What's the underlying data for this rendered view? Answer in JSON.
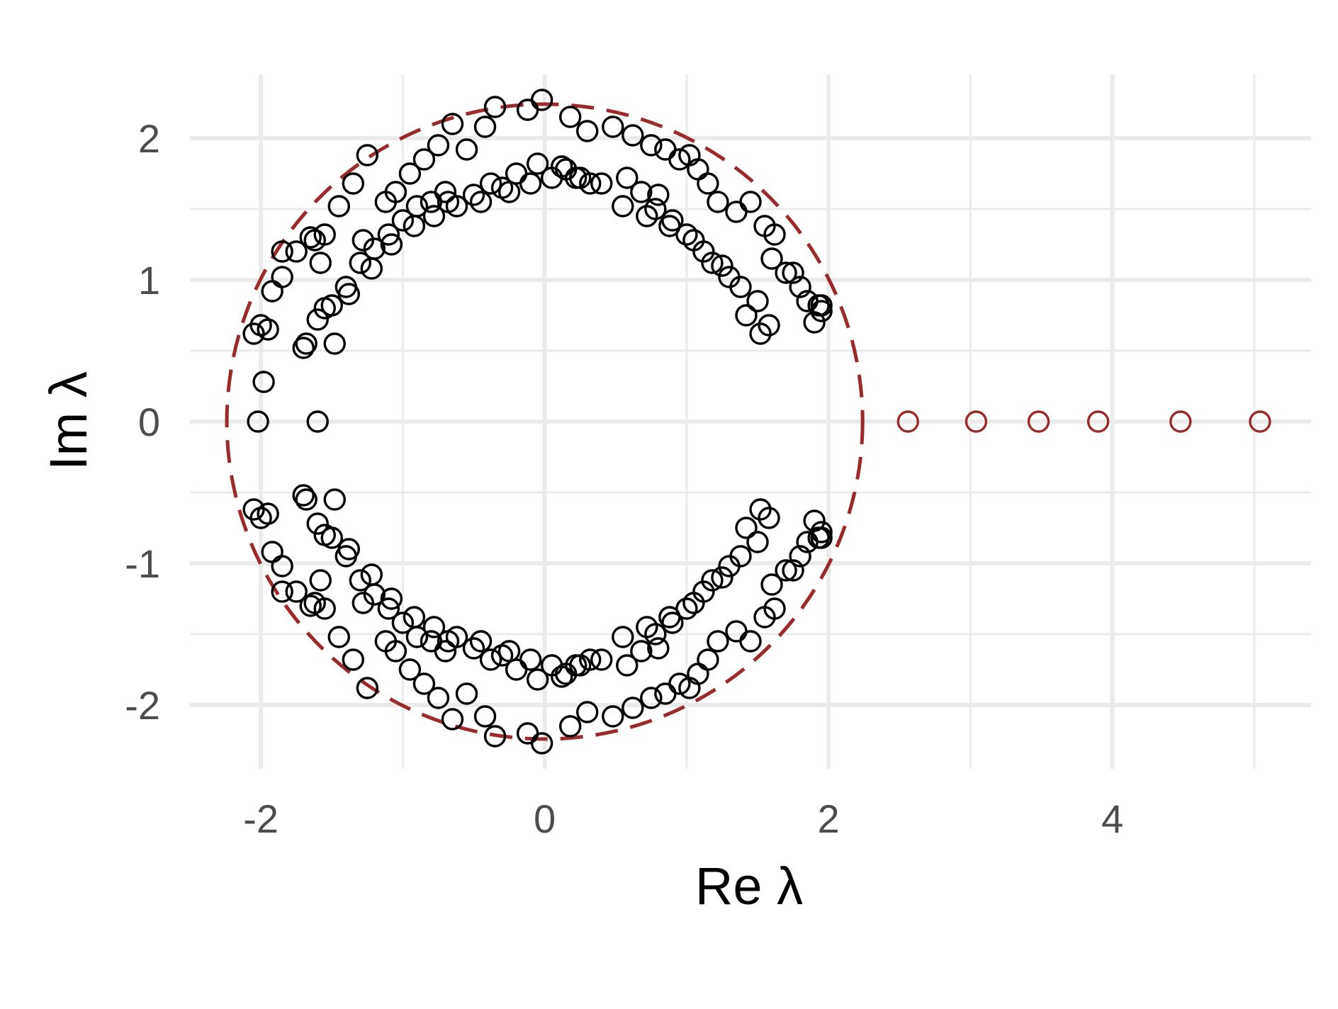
{
  "chart_data": {
    "type": "scatter",
    "title": "",
    "xlabel": "Re λ",
    "ylabel": "Im λ",
    "xlim": [
      -2.5,
      5.4
    ],
    "ylim": [
      -2.45,
      2.45
    ],
    "x_ticks": [
      -2,
      0,
      2,
      4
    ],
    "y_ticks": [
      -2,
      -1,
      0,
      1,
      2
    ],
    "x_ticks_text": [
      "-2",
      "0",
      "2",
      "4"
    ],
    "y_ticks_text": [
      "-2",
      "-1",
      "0",
      "1",
      "2"
    ],
    "grid": true,
    "legend": "none",
    "colors": {
      "bulk": "#000000",
      "outlier": "#9b2a2a",
      "circle": "#9b2a2a",
      "grid": "#ebebeb",
      "tick_text": "#4d4d4d"
    },
    "reference_circle": {
      "center": [
        0,
        0
      ],
      "radius": 2.24,
      "style": "dashed"
    },
    "series": [
      {
        "role": "bulk",
        "x": [
          -0.02,
          -0.12,
          0.18,
          -0.35,
          -0.42,
          0.3,
          0.48,
          0.62,
          0.75,
          0.85,
          0.95,
          1.02,
          1.08,
          1.15,
          1.22,
          1.35,
          1.45,
          1.55,
          1.62,
          1.75,
          1.85,
          1.93,
          -0.55,
          -0.65,
          -0.75,
          -0.85,
          -0.95,
          -1.05,
          -1.12,
          -1.25,
          -1.35,
          -1.45,
          -1.55,
          -1.65,
          -1.75,
          -1.85,
          -1.95,
          -2.05,
          0.05,
          -0.2,
          0.25,
          -0.3,
          0.4,
          -0.5,
          0.58,
          -0.7,
          0.68,
          -0.8,
          0.78,
          -0.9,
          0.9,
          -1.0,
          1.0,
          -1.1,
          1.12,
          -1.2,
          1.25,
          -1.3,
          1.38,
          -1.4,
          1.5,
          -1.5,
          1.58,
          -1.6,
          -1.7,
          1.7,
          1.8,
          1.9,
          1.95,
          -2.0,
          -1.58,
          -1.62,
          -0.1,
          0.12,
          -0.25,
          0.32,
          0.55,
          -0.45,
          0.72,
          -0.62,
          0.88,
          -0.78,
          1.05,
          -0.92,
          1.18,
          -1.08,
          1.3,
          -1.22,
          1.42,
          -1.38,
          1.52,
          -1.48,
          -1.55,
          1.6,
          0.15,
          -0.05,
          0.22,
          -0.38,
          -0.68,
          -1.28,
          0.8,
          -1.85,
          -1.92,
          -1.68,
          1.95,
          -0.02,
          -0.12,
          0.18,
          -0.35,
          -0.42,
          0.3,
          0.48,
          0.62,
          0.75,
          0.85,
          0.95,
          1.02,
          1.08,
          1.15,
          1.22,
          1.35,
          1.45,
          1.55,
          1.62,
          1.75,
          1.85,
          1.93,
          -0.55,
          -0.65,
          -0.75,
          -0.85,
          -0.95,
          -1.05,
          -1.12,
          -1.25,
          -1.35,
          -1.45,
          -1.55,
          -1.65,
          -1.75,
          -1.85,
          -1.95,
          -2.05,
          0.05,
          -0.2,
          0.25,
          -0.3,
          0.4,
          -0.5,
          0.58,
          -0.7,
          0.68,
          -0.8,
          0.78,
          -0.9,
          0.9,
          -1.0,
          1.0,
          -1.1,
          1.12,
          -1.2,
          1.25,
          -1.3,
          1.38,
          -1.4,
          1.5,
          -1.5,
          1.58,
          -1.6,
          -1.7,
          1.7,
          1.8,
          1.9,
          1.95,
          -2.0,
          -1.58,
          -1.62,
          -0.1,
          0.12,
          -0.25,
          0.32,
          0.55,
          -0.45,
          0.72,
          -0.62,
          0.88,
          -0.78,
          1.05,
          -0.92,
          1.18,
          -1.08,
          1.3,
          -1.22,
          1.42,
          -1.38,
          1.52,
          -1.48,
          -1.55,
          1.6,
          0.15,
          -0.05,
          0.22,
          -0.38,
          -0.68,
          -1.28,
          0.8,
          -1.85,
          -1.92,
          -1.68,
          1.95,
          -2.02,
          -1.98,
          -1.6
        ],
        "y": [
          2.27,
          2.2,
          2.15,
          2.22,
          2.08,
          2.05,
          2.08,
          2.02,
          1.95,
          1.92,
          1.85,
          1.88,
          1.78,
          1.68,
          1.55,
          1.48,
          1.55,
          1.38,
          1.32,
          1.05,
          0.85,
          0.82,
          1.92,
          2.1,
          1.95,
          1.85,
          1.75,
          1.62,
          1.55,
          1.88,
          1.68,
          1.52,
          1.32,
          1.3,
          1.2,
          1.2,
          0.65,
          0.62,
          1.72,
          1.75,
          1.72,
          1.65,
          1.68,
          1.6,
          1.72,
          1.62,
          1.62,
          1.55,
          1.5,
          1.52,
          1.42,
          1.42,
          1.32,
          1.32,
          1.2,
          1.22,
          1.1,
          1.12,
          0.95,
          0.95,
          0.85,
          0.82,
          0.68,
          0.72,
          0.52,
          1.05,
          0.95,
          0.7,
          0.82,
          0.68,
          1.12,
          1.28,
          1.68,
          1.8,
          1.62,
          1.68,
          1.52,
          1.55,
          1.45,
          1.52,
          1.38,
          1.45,
          1.28,
          1.38,
          1.12,
          1.25,
          1.02,
          1.08,
          0.75,
          0.9,
          0.62,
          0.55,
          0.8,
          1.15,
          1.78,
          1.82,
          1.72,
          1.68,
          1.55,
          1.28,
          1.6,
          1.02,
          0.92,
          0.55,
          0.78,
          -2.27,
          -2.2,
          -2.15,
          -2.22,
          -2.08,
          -2.05,
          -2.08,
          -2.02,
          -1.95,
          -1.92,
          -1.85,
          -1.88,
          -1.78,
          -1.68,
          -1.55,
          -1.48,
          -1.55,
          -1.38,
          -1.32,
          -1.05,
          -0.85,
          -0.82,
          -1.92,
          -2.1,
          -1.95,
          -1.85,
          -1.75,
          -1.62,
          -1.55,
          -1.88,
          -1.68,
          -1.52,
          -1.32,
          -1.3,
          -1.2,
          -1.2,
          -0.65,
          -0.62,
          -1.72,
          -1.75,
          -1.72,
          -1.65,
          -1.68,
          -1.6,
          -1.72,
          -1.62,
          -1.62,
          -1.55,
          -1.5,
          -1.52,
          -1.42,
          -1.42,
          -1.32,
          -1.32,
          -1.2,
          -1.22,
          -1.1,
          -1.12,
          -0.95,
          -0.95,
          -0.85,
          -0.82,
          -0.68,
          -0.72,
          -0.52,
          -1.05,
          -0.95,
          -0.7,
          -0.82,
          -0.68,
          -1.12,
          -1.28,
          -1.68,
          -1.8,
          -1.62,
          -1.68,
          -1.52,
          -1.55,
          -1.45,
          -1.52,
          -1.38,
          -1.45,
          -1.28,
          -1.38,
          -1.12,
          -1.25,
          -1.02,
          -1.08,
          -0.75,
          -0.9,
          -0.62,
          -0.55,
          -0.8,
          -1.15,
          -1.78,
          -1.82,
          -1.72,
          -1.68,
          -1.55,
          -1.28,
          -1.6,
          -1.02,
          -0.92,
          -0.55,
          -0.78,
          0.0,
          0.28,
          0.0
        ]
      },
      {
        "role": "outlier",
        "x": [
          2.56,
          3.04,
          3.48,
          3.9,
          4.48,
          5.04
        ],
        "y": [
          0,
          0,
          0,
          0,
          0,
          0
        ]
      }
    ]
  }
}
